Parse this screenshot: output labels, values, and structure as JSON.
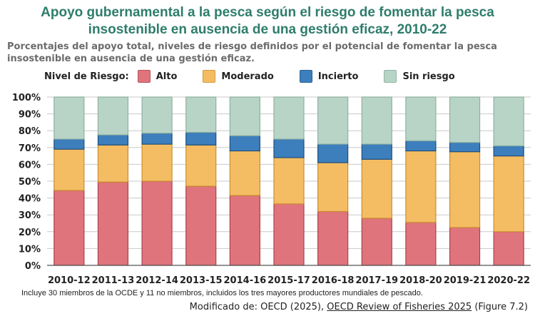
{
  "title_line1": "Apoyo gubernamental a la pesca según el riesgo de fomentar la pesca",
  "title_line2": "insostenible en ausencia de una gestión eficaz, 2010-22",
  "subtitle_line1": "Porcentajes del apoyo total, niveles de riesgo definidos por el potencial de fomentar la pesca",
  "subtitle_line2": "insostenible en ausencia de una gestión eficaz.",
  "legend": {
    "title": "Nivel de Riesgo:",
    "items": [
      {
        "label": "Alto",
        "color": "#e0747c"
      },
      {
        "label": "Moderado",
        "color": "#f5bd63"
      },
      {
        "label": "Incierto",
        "color": "#3d7fbd"
      },
      {
        "label": "Sin riesgo",
        "color": "#b7d4c6"
      }
    ]
  },
  "note": "Incluye  30 miembros de la OCDE y 11 no miembros, incluidos los tres mayores productores mundiales  de pescado.",
  "source": {
    "prefix": "Modificado de: OECD (2025), ",
    "link": "OECD Review of Fisheries 2025",
    "suffix": " (Figure 7.2)"
  },
  "chart_data": {
    "type": "bar",
    "stacked": true,
    "categories": [
      "2010-12",
      "2011-13",
      "2012-14",
      "2013-15",
      "2014-16",
      "2015-17",
      "2016-18",
      "2017-19",
      "2018-20",
      "2019-21",
      "2020-22"
    ],
    "series": [
      {
        "name": "Alto",
        "color": "#e0747c",
        "values": [
          44.5,
          49.5,
          50,
          47,
          41.5,
          36.5,
          32,
          28,
          25.5,
          22.5,
          20
        ]
      },
      {
        "name": "Moderado",
        "color": "#f5bd63",
        "values": [
          24.5,
          22,
          22,
          24.5,
          26.5,
          27.5,
          29,
          35,
          42.5,
          45,
          45
        ]
      },
      {
        "name": "Incierto",
        "color": "#3d7fbd",
        "values": [
          6,
          6,
          6.5,
          7.5,
          9,
          11,
          11,
          9,
          6,
          5.5,
          6
        ]
      },
      {
        "name": "Sin riesgo",
        "color": "#b7d4c6",
        "values": [
          25,
          22.5,
          21.5,
          21,
          23,
          25,
          28,
          28,
          26,
          27,
          29
        ]
      }
    ],
    "ylim": [
      0,
      100
    ],
    "yticks": [
      "0%",
      "10%",
      "20%",
      "30%",
      "40%",
      "50%",
      "60%",
      "70%",
      "80%",
      "90%",
      "100%"
    ],
    "grid": true,
    "legend_position": "top"
  }
}
